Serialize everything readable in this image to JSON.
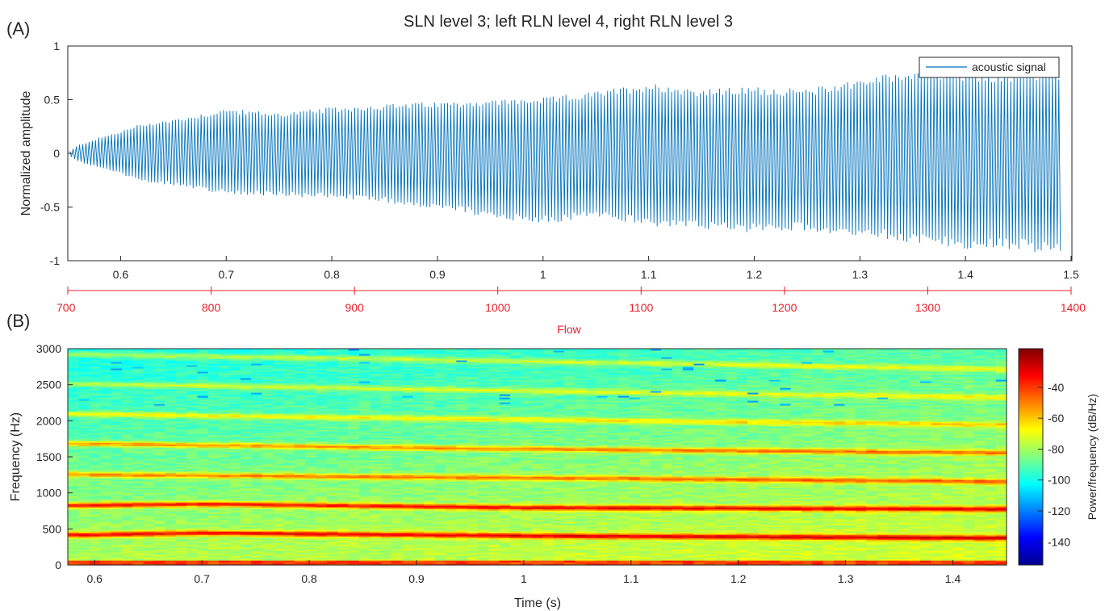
{
  "chart_data": [
    {
      "panel_label": "(A)",
      "type": "line",
      "title": "SLN level 3; left RLN level 4, right RLN level 3",
      "xlabel": "",
      "ylabel": "Normalized amplitude",
      "xlim": [
        0.55,
        1.5
      ],
      "ylim": [
        -1,
        1
      ],
      "xticks": [
        "0.6",
        "0.7",
        "0.8",
        "0.9",
        "1",
        "1.1",
        "1.2",
        "1.3",
        "1.4",
        "1.5"
      ],
      "xtick_values": [
        0.6,
        0.7,
        0.8,
        0.9,
        1.0,
        1.1,
        1.2,
        1.3,
        1.4,
        1.5
      ],
      "yticks": [
        "1",
        "0.5",
        "0",
        "-0.5",
        "-1"
      ],
      "ytick_values": [
        1,
        0.5,
        0,
        -0.5,
        -1
      ],
      "grid": false,
      "legend_position": "top-right",
      "series": [
        {
          "name": "acoustic signal",
          "color": "#0072bd",
          "signal_start_s": 0.552,
          "signal_end_s": 1.49,
          "oscillation_hz": 330,
          "envelope": {
            "t": [
              0.552,
              0.56,
              0.58,
              0.6,
              0.62,
              0.65,
              0.7,
              0.75,
              0.8,
              0.85,
              0.9,
              0.95,
              1.0,
              1.05,
              1.1,
              1.15,
              1.2,
              1.25,
              1.3,
              1.35,
              1.4,
              1.45,
              1.49
            ],
            "upper": [
              0.02,
              0.08,
              0.15,
              0.21,
              0.28,
              0.32,
              0.42,
              0.38,
              0.43,
              0.46,
              0.48,
              0.5,
              0.52,
              0.58,
              0.66,
              0.6,
              0.62,
              0.6,
              0.7,
              0.78,
              0.75,
              0.74,
              0.78
            ],
            "lower": [
              -0.02,
              -0.08,
              -0.14,
              -0.2,
              -0.26,
              -0.3,
              -0.38,
              -0.4,
              -0.42,
              -0.46,
              -0.52,
              -0.6,
              -0.66,
              -0.6,
              -0.68,
              -0.72,
              -0.74,
              -0.72,
              -0.78,
              -0.84,
              -0.9,
              -0.9,
              -0.96
            ]
          }
        }
      ],
      "secondary_xaxis": {
        "label": "Flow",
        "color": "#e8202a",
        "lim": [
          700,
          1400
        ],
        "ticks": [
          "700",
          "800",
          "900",
          "1000",
          "1100",
          "1200",
          "1300",
          "1400"
        ],
        "tick_values": [
          700,
          800,
          900,
          1000,
          1100,
          1200,
          1300,
          1400
        ]
      }
    },
    {
      "panel_label": "(B)",
      "type": "heatmap",
      "xlabel": "Time (s)",
      "ylabel": "Frequency (Hz)",
      "xlim": [
        0.575,
        1.45
      ],
      "ylim": [
        0,
        3000
      ],
      "xticks": [
        "0.6",
        "0.7",
        "0.8",
        "0.9",
        "1",
        "1.1",
        "1.2",
        "1.3",
        "1.4"
      ],
      "xtick_values": [
        0.6,
        0.7,
        0.8,
        0.9,
        1.0,
        1.1,
        1.2,
        1.3,
        1.4
      ],
      "yticks": [
        "3000",
        "2500",
        "2000",
        "1500",
        "1000",
        "500",
        "0"
      ],
      "ytick_values": [
        3000,
        2500,
        2000,
        1500,
        1000,
        500,
        0
      ],
      "colormap": "jet",
      "colorbar": {
        "label": "Power/frequency (dB/Hz)",
        "lim": [
          -155,
          -15
        ],
        "ticks": [
          "-40",
          "-60",
          "-80",
          "-100",
          "-120",
          "-140"
        ],
        "tick_values": [
          -40,
          -60,
          -80,
          -100,
          -120,
          -140
        ]
      },
      "harmonics": [
        {
          "t": [
            0.575,
            0.7,
            1.0,
            1.45
          ],
          "f": [
            420,
            450,
            410,
            380
          ]
        },
        {
          "t": [
            0.575,
            0.7,
            1.0,
            1.45
          ],
          "f": [
            830,
            850,
            800,
            780
          ]
        },
        {
          "t": [
            0.575,
            0.95,
            1.45
          ],
          "f": [
            1260,
            1220,
            1160
          ]
        },
        {
          "t": [
            0.575,
            0.95,
            1.45
          ],
          "f": [
            1690,
            1620,
            1560
          ]
        },
        {
          "t": [
            0.575,
            1.0,
            1.45
          ],
          "f": [
            2100,
            2020,
            1950
          ]
        },
        {
          "t": [
            0.575,
            1.0,
            1.45
          ],
          "f": [
            2520,
            2420,
            2330
          ]
        },
        {
          "t": [
            0.575,
            1.0,
            1.45
          ],
          "f": [
            2930,
            2830,
            2720
          ]
        }
      ]
    }
  ]
}
